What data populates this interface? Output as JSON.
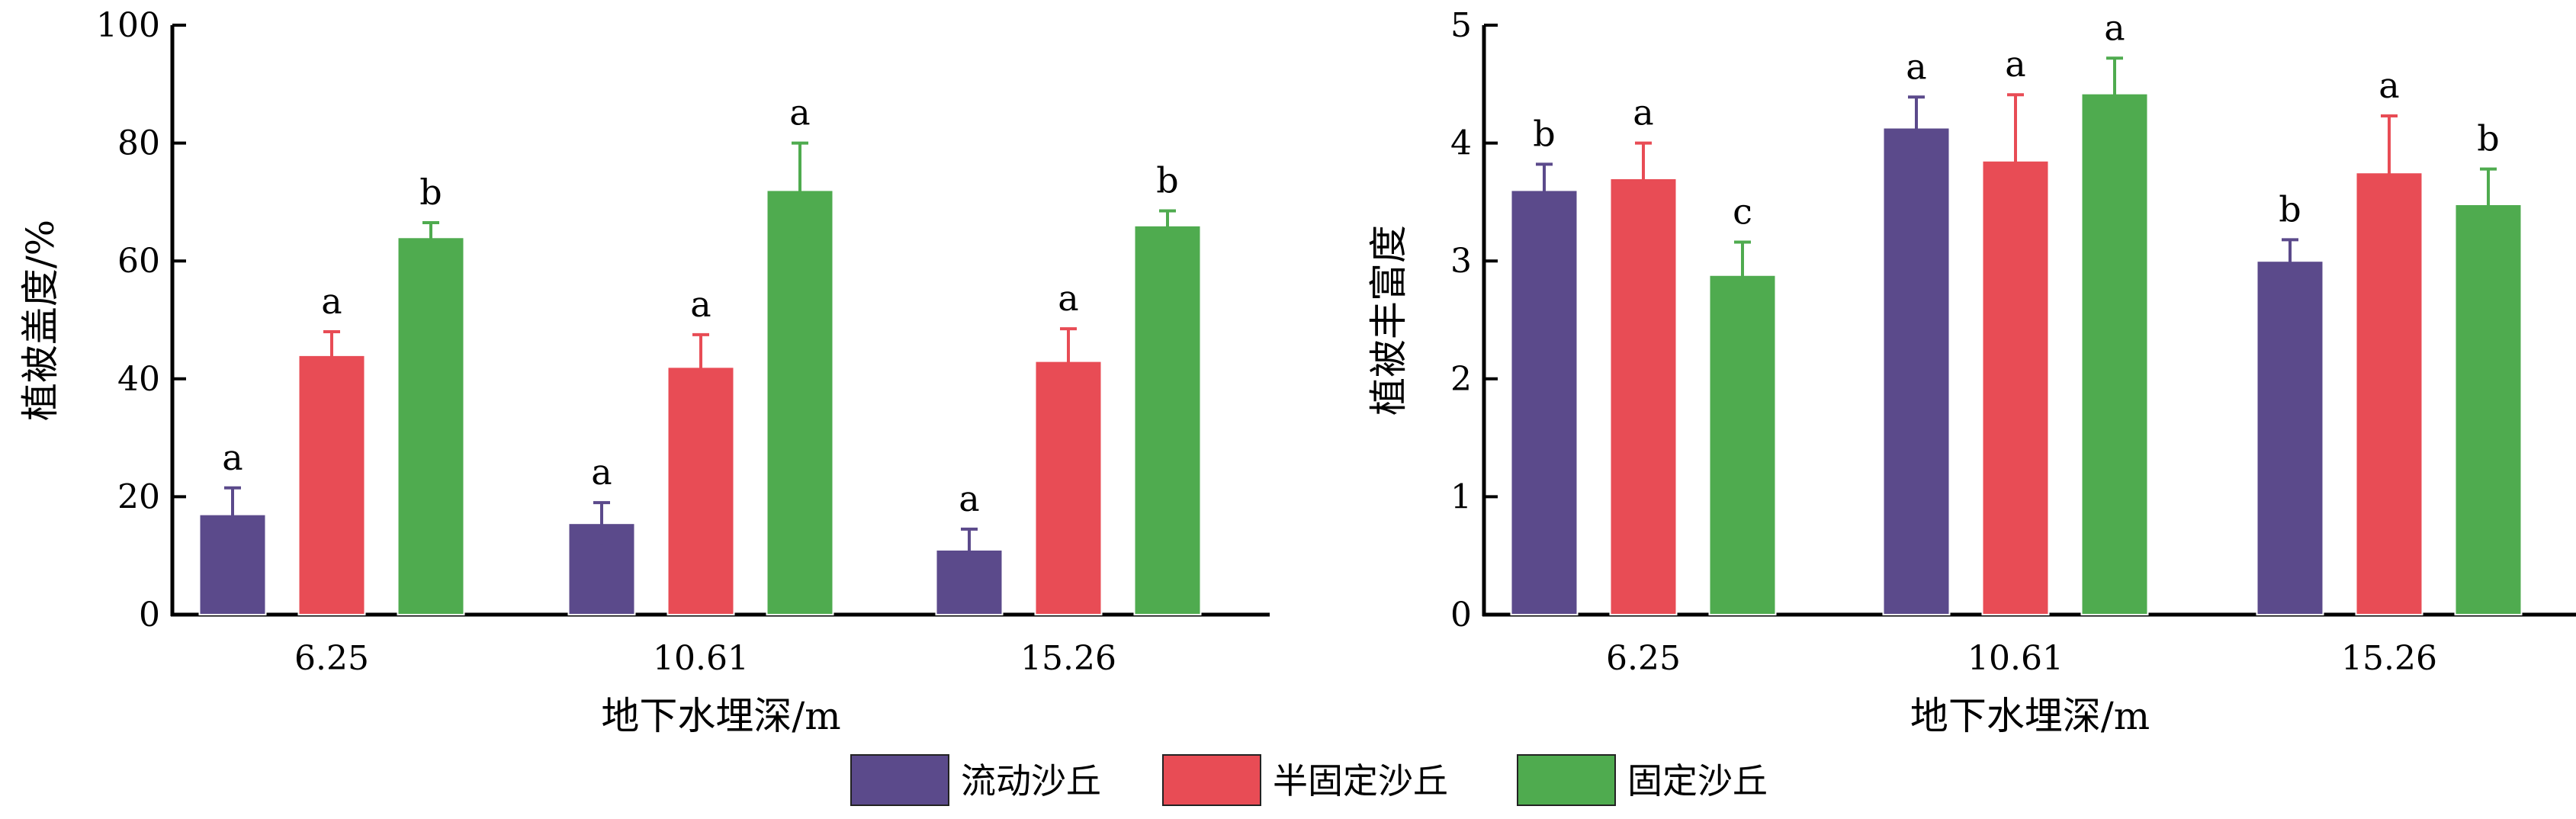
{
  "chart_data": [
    {
      "type": "bar",
      "title": "",
      "xlabel": "地下水埋深/m",
      "ylabel": "植被盖度/%",
      "ylim": [
        0,
        100
      ],
      "yticks": [
        "0",
        "20",
        "40",
        "60",
        "80",
        "100"
      ],
      "categories": [
        "6.25",
        "10.61",
        "15.26"
      ],
      "series": [
        {
          "name": "流动沙丘",
          "values": [
            17,
            15.5,
            11
          ],
          "errors": [
            4.5,
            3.5,
            3.5
          ],
          "labels": [
            "a",
            "a",
            "a"
          ]
        },
        {
          "name": "半固定沙丘",
          "values": [
            44,
            42,
            43
          ],
          "errors": [
            4,
            5.5,
            5.5
          ],
          "labels": [
            "a",
            "a",
            "a"
          ]
        },
        {
          "name": "固定沙丘",
          "values": [
            64,
            72,
            66
          ],
          "errors": [
            2.5,
            8,
            2.5
          ],
          "labels": [
            "b",
            "a",
            "b"
          ]
        }
      ]
    },
    {
      "type": "bar",
      "title": "",
      "xlabel": "地下水埋深/m",
      "ylabel": "植被丰富度",
      "ylim": [
        0,
        5
      ],
      "yticks": [
        "0",
        "1",
        "2",
        "3",
        "4",
        "5"
      ],
      "categories": [
        "6.25",
        "10.61",
        "15.26"
      ],
      "series": [
        {
          "name": "流动沙丘",
          "values": [
            3.6,
            4.13,
            3.0
          ],
          "errors": [
            0.22,
            0.26,
            0.18
          ],
          "labels": [
            "b",
            "a",
            "b"
          ]
        },
        {
          "name": "半固定沙丘",
          "values": [
            3.7,
            3.85,
            3.75
          ],
          "errors": [
            0.3,
            0.56,
            0.48
          ],
          "labels": [
            "a",
            "a",
            "a"
          ]
        },
        {
          "name": "固定沙丘",
          "values": [
            2.88,
            4.42,
            3.48
          ],
          "errors": [
            0.28,
            0.3,
            0.3
          ],
          "labels": [
            "c",
            "a",
            "b"
          ]
        }
      ]
    }
  ],
  "legend": {
    "items": [
      {
        "label": "流动沙丘",
        "color": "#5b4a8b"
      },
      {
        "label": "半固定沙丘",
        "color": "#e84c55"
      },
      {
        "label": "固定沙丘",
        "color": "#4fab4f"
      }
    ]
  },
  "colors": [
    "#5b4a8b",
    "#e84c55",
    "#4fab4f"
  ]
}
